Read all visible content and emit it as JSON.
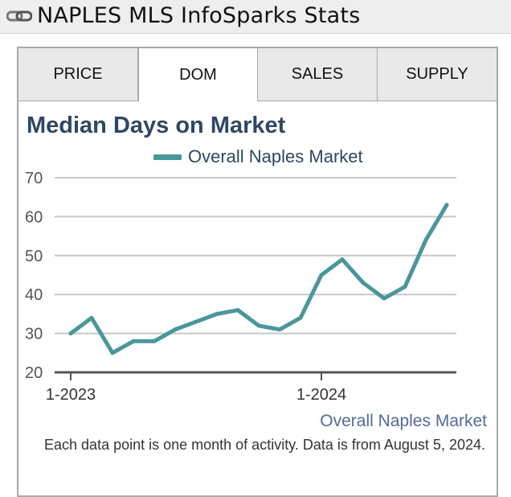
{
  "header": {
    "title": "NAPLES MLS InfoSparks Stats",
    "icon": "link-icon"
  },
  "tabs": [
    {
      "label": "PRICE",
      "active": false
    },
    {
      "label": "DOM",
      "active": true
    },
    {
      "label": "SALES",
      "active": false
    },
    {
      "label": "SUPPLY",
      "active": false
    }
  ],
  "footer": {
    "source_link": "Overall Naples Market",
    "note": "Each data point is one month of activity. Data is from August 5, 2024."
  },
  "colors": {
    "series": "#4a979b",
    "title": "#2e4765",
    "grid": "#c8c8c8",
    "axis": "#555555"
  },
  "chart_data": {
    "type": "line",
    "title": "Median Days on Market",
    "legend_position": "top",
    "grid": true,
    "xlabel": "",
    "ylabel": "",
    "ylim": [
      20,
      70
    ],
    "yticks": [
      "20",
      "30",
      "40",
      "50",
      "60",
      "70"
    ],
    "x_tick_labels": [
      {
        "label": "1-2023",
        "index": 0
      },
      {
        "label": "1-2024",
        "index": 12
      }
    ],
    "x": [
      "2023-01",
      "2023-02",
      "2023-03",
      "2023-04",
      "2023-05",
      "2023-06",
      "2023-07",
      "2023-08",
      "2023-09",
      "2023-10",
      "2023-11",
      "2023-12",
      "2024-01",
      "2024-02",
      "2024-03",
      "2024-04",
      "2024-05",
      "2024-06",
      "2024-07"
    ],
    "series": [
      {
        "name": "Overall Naples Market",
        "values": [
          30,
          34,
          25,
          28,
          28,
          31,
          33,
          35,
          36,
          32,
          31,
          34,
          45,
          49,
          43,
          39,
          42,
          54,
          63
        ]
      }
    ]
  }
}
